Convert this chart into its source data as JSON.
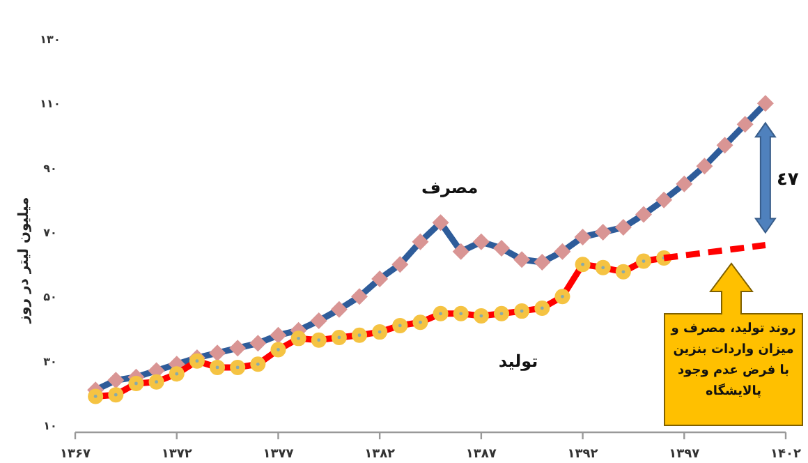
{
  "chart_data": {
    "type": "line",
    "ylabel": "میلیون لیتر در روز",
    "x": [
      1368,
      1369,
      1370,
      1371,
      1372,
      1373,
      1374,
      1375,
      1376,
      1377,
      1378,
      1379,
      1380,
      1381,
      1382,
      1383,
      1384,
      1385,
      1386,
      1387,
      1388,
      1389,
      1390,
      1391,
      1392,
      1393,
      1394,
      1395,
      1396,
      1397,
      1398,
      1399,
      1400,
      1401
    ],
    "series": [
      {
        "name": "مصرف",
        "color": "#2e5c9a",
        "marker": "diamond",
        "values": [
          21,
          24,
          25,
          27,
          29,
          31,
          32.5,
          34,
          35.5,
          38,
          39.5,
          42.5,
          46,
          50,
          55.5,
          60,
          67,
          73,
          64,
          67,
          65,
          61.5,
          60.7,
          64,
          68.5,
          70,
          71.5,
          75.5,
          80,
          85,
          90.5,
          97,
          103.5,
          110
        ]
      },
      {
        "name": "تولید",
        "color": "#ff0000",
        "marker": "circle",
        "x": [
          1368,
          1369,
          1370,
          1371,
          1372,
          1373,
          1374,
          1375,
          1376,
          1377,
          1378,
          1379,
          1380,
          1381,
          1382,
          1383,
          1384,
          1385,
          1386,
          1387,
          1388,
          1389,
          1390,
          1391,
          1392,
          1393,
          1394,
          1395,
          1396
        ],
        "values": [
          19,
          19.5,
          23,
          23.5,
          26,
          30,
          28,
          28,
          29,
          33.5,
          37,
          36.5,
          37.3,
          38,
          39,
          41,
          42,
          44.7,
          44.7,
          44,
          44.7,
          45.5,
          46.4,
          50,
          60,
          59,
          57.7,
          61,
          62
        ]
      },
      {
        "color": "#ff0000",
        "line_style": "dashed",
        "marker": "none",
        "x": [
          1396,
          1401
        ],
        "values": [
          62,
          66
        ]
      }
    ],
    "xlim": [
      1367,
      1402
    ],
    "ylim": [
      10,
      130
    ],
    "xticks": [
      {
        "value": 1367,
        "label": "۱۳۶۷"
      },
      {
        "value": 1372,
        "label": "۱۳۷۲"
      },
      {
        "value": 1377,
        "label": "۱۳۷۷"
      },
      {
        "value": 1382,
        "label": "۱۳۸۲"
      },
      {
        "value": 1387,
        "label": "۱۳۸۷"
      },
      {
        "value": 1392,
        "label": "۱۳۹۲"
      },
      {
        "value": 1397,
        "label": "۱۳۹۷"
      },
      {
        "value": 1402,
        "label": "۱۴۰۲"
      }
    ],
    "yticks": [
      {
        "value": 10,
        "label": "۱۰"
      },
      {
        "value": 30,
        "label": "۳۰"
      },
      {
        "value": 50,
        "label": "۵۰"
      },
      {
        "value": 70,
        "label": "۷۰"
      },
      {
        "value": 90,
        "label": "۹۰"
      },
      {
        "value": 110,
        "label": "۱۱۰"
      },
      {
        "value": 130,
        "label": "۱۳۰"
      }
    ],
    "annotations": [
      "٤٧",
      "روند تولید، مصرف و میزان واردات بنزین با فرض عدم وجود پالایشگاه"
    ],
    "grid": false
  }
}
